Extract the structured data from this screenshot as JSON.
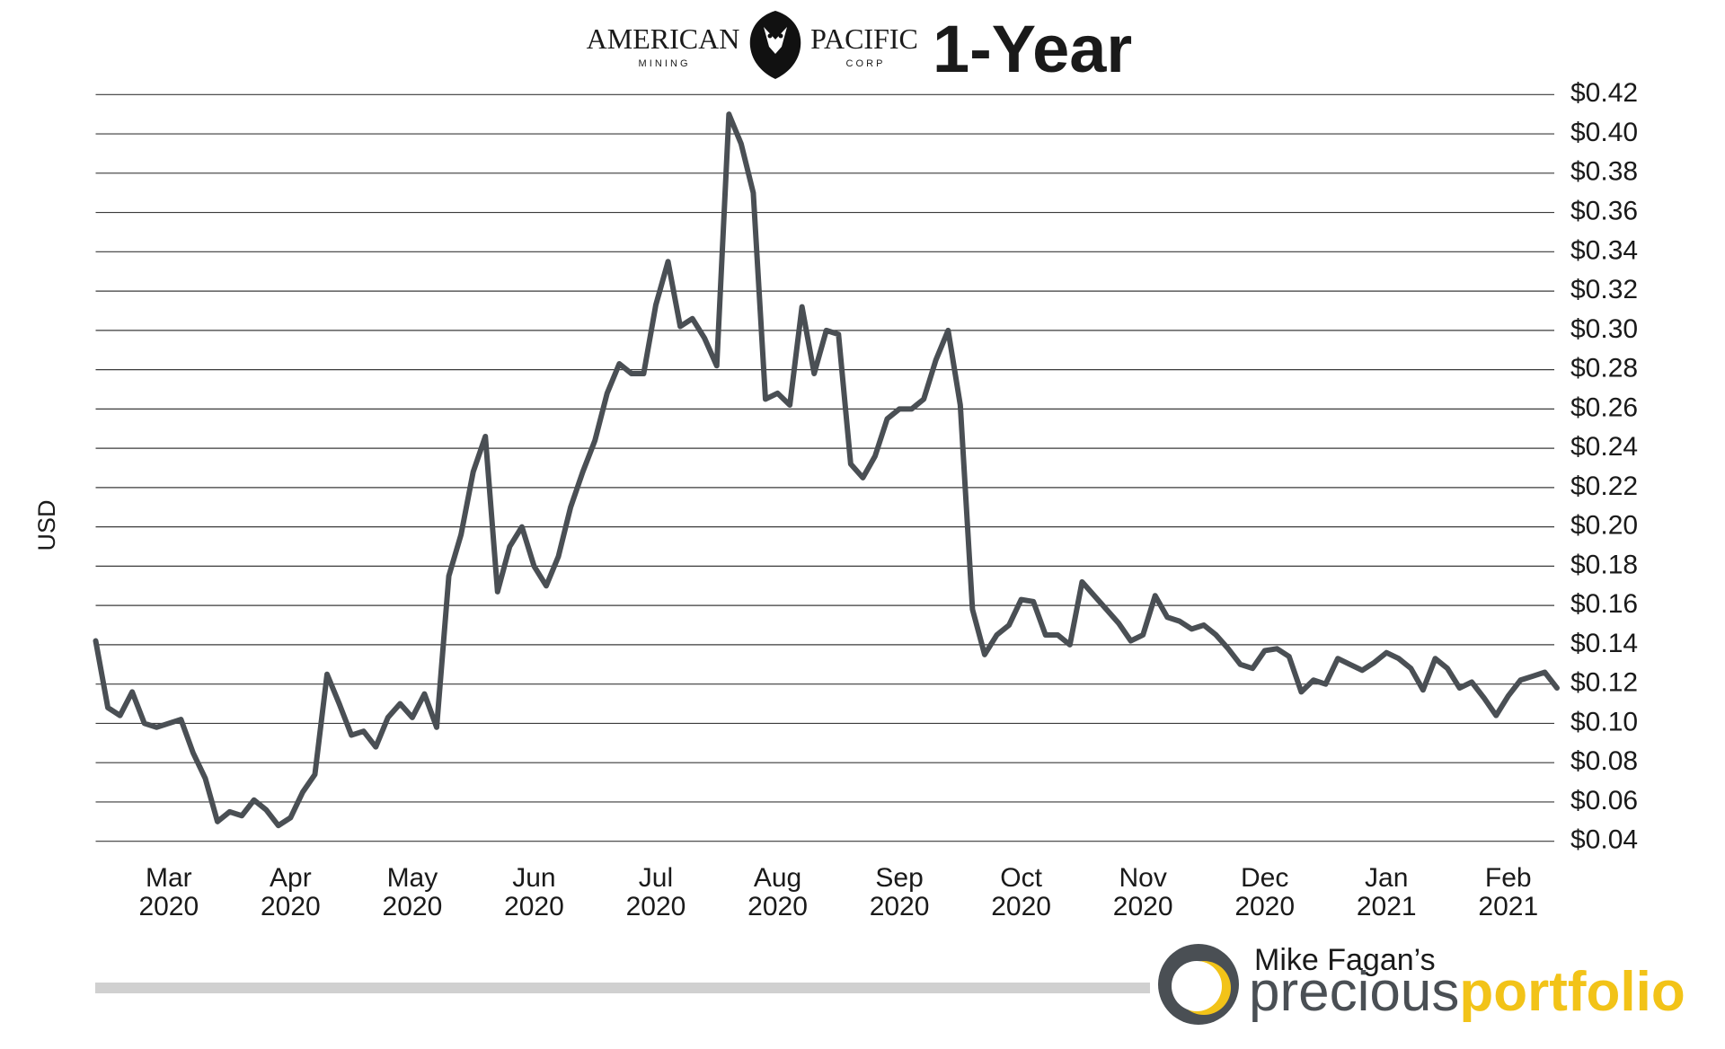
{
  "logo": {
    "name_left": "AMERICAN",
    "name_right": "PACIFIC",
    "sub_left": "M I N I N G",
    "sub_right": "C O R P"
  },
  "chart_data": {
    "type": "line",
    "title": "1-Year",
    "ylabel": "USD",
    "color": "#4a4f54",
    "grid": true,
    "ylim": [
      0.04,
      0.42
    ],
    "yticks": [
      {
        "value": 0.04,
        "label": "$0.04"
      },
      {
        "value": 0.06,
        "label": "$0.06"
      },
      {
        "value": 0.08,
        "label": "$0.08"
      },
      {
        "value": 0.1,
        "label": "$0.10"
      },
      {
        "value": 0.12,
        "label": "$0.12"
      },
      {
        "value": 0.14,
        "label": "$0.14"
      },
      {
        "value": 0.16,
        "label": "$0.16"
      },
      {
        "value": 0.18,
        "label": "$0.18"
      },
      {
        "value": 0.2,
        "label": "$0.20"
      },
      {
        "value": 0.22,
        "label": "$0.22"
      },
      {
        "value": 0.24,
        "label": "$0.24"
      },
      {
        "value": 0.26,
        "label": "$0.26"
      },
      {
        "value": 0.28,
        "label": "$0.28"
      },
      {
        "value": 0.3,
        "label": "$0.30"
      },
      {
        "value": 0.32,
        "label": "$0.32"
      },
      {
        "value": 0.34,
        "label": "$0.34"
      },
      {
        "value": 0.36,
        "label": "$0.36"
      },
      {
        "value": 0.38,
        "label": "$0.38"
      },
      {
        "value": 0.4,
        "label": "$0.40"
      },
      {
        "value": 0.42,
        "label": "$0.42"
      }
    ],
    "categories": [
      null,
      null,
      null,
      null,
      null,
      null,
      "Mar\n2020",
      null,
      null,
      null,
      null,
      null,
      null,
      null,
      null,
      null,
      "Apr\n2020",
      null,
      null,
      null,
      null,
      null,
      null,
      null,
      null,
      null,
      "May\n2020",
      null,
      null,
      null,
      null,
      null,
      null,
      null,
      null,
      null,
      "Jun\n2020",
      null,
      null,
      null,
      null,
      null,
      null,
      null,
      null,
      null,
      "Jul\n2020",
      null,
      null,
      null,
      null,
      null,
      null,
      null,
      null,
      null,
      "Aug\n2020",
      null,
      null,
      null,
      null,
      null,
      null,
      null,
      null,
      null,
      "Sep\n2020",
      null,
      null,
      null,
      null,
      null,
      null,
      null,
      null,
      null,
      "Oct\n2020",
      null,
      null,
      null,
      null,
      null,
      null,
      null,
      null,
      null,
      "Nov\n2020",
      null,
      null,
      null,
      null,
      null,
      null,
      null,
      null,
      null,
      "Dec\n2020",
      null,
      null,
      null,
      null,
      null,
      null,
      null,
      null,
      null,
      "Jan\n2021",
      null,
      null,
      null,
      null,
      null,
      null,
      null,
      null,
      null,
      "Feb\n2021",
      null,
      null,
      null,
      null
    ],
    "values": [
      0.142,
      0.108,
      0.104,
      0.116,
      0.1,
      0.098,
      0.1,
      0.102,
      0.085,
      0.072,
      0.05,
      0.055,
      0.053,
      0.061,
      0.056,
      0.048,
      0.052,
      0.065,
      0.074,
      0.125,
      0.11,
      0.094,
      0.096,
      0.088,
      0.103,
      0.11,
      0.103,
      0.115,
      0.098,
      0.175,
      0.196,
      0.228,
      0.246,
      0.167,
      0.19,
      0.2,
      0.18,
      0.17,
      0.185,
      0.21,
      0.228,
      0.244,
      0.268,
      0.283,
      0.278,
      0.278,
      0.313,
      0.335,
      0.302,
      0.306,
      0.296,
      0.282,
      0.41,
      0.395,
      0.37,
      0.265,
      0.268,
      0.262,
      0.312,
      0.278,
      0.3,
      0.298,
      0.232,
      0.225,
      0.236,
      0.255,
      0.26,
      0.26,
      0.265,
      0.285,
      0.3,
      0.262,
      0.158,
      0.135,
      0.145,
      0.15,
      0.163,
      0.162,
      0.145,
      0.145,
      0.14,
      0.172,
      0.165,
      0.158,
      0.151,
      0.142,
      0.145,
      0.165,
      0.154,
      0.152,
      0.148,
      0.15,
      0.145,
      0.138,
      0.13,
      0.128,
      0.137,
      0.138,
      0.134,
      0.116,
      0.122,
      0.12,
      0.133,
      0.13,
      0.127,
      0.131,
      0.136,
      0.133,
      0.128,
      0.117,
      0.133,
      0.128,
      0.118,
      0.121,
      0.113,
      0.104,
      0.114,
      0.122,
      0.124,
      0.126,
      0.118
    ]
  },
  "footer": {
    "byline": "Mike Fagan’s",
    "brand_a": "precious",
    "brand_b": "portfolio"
  }
}
